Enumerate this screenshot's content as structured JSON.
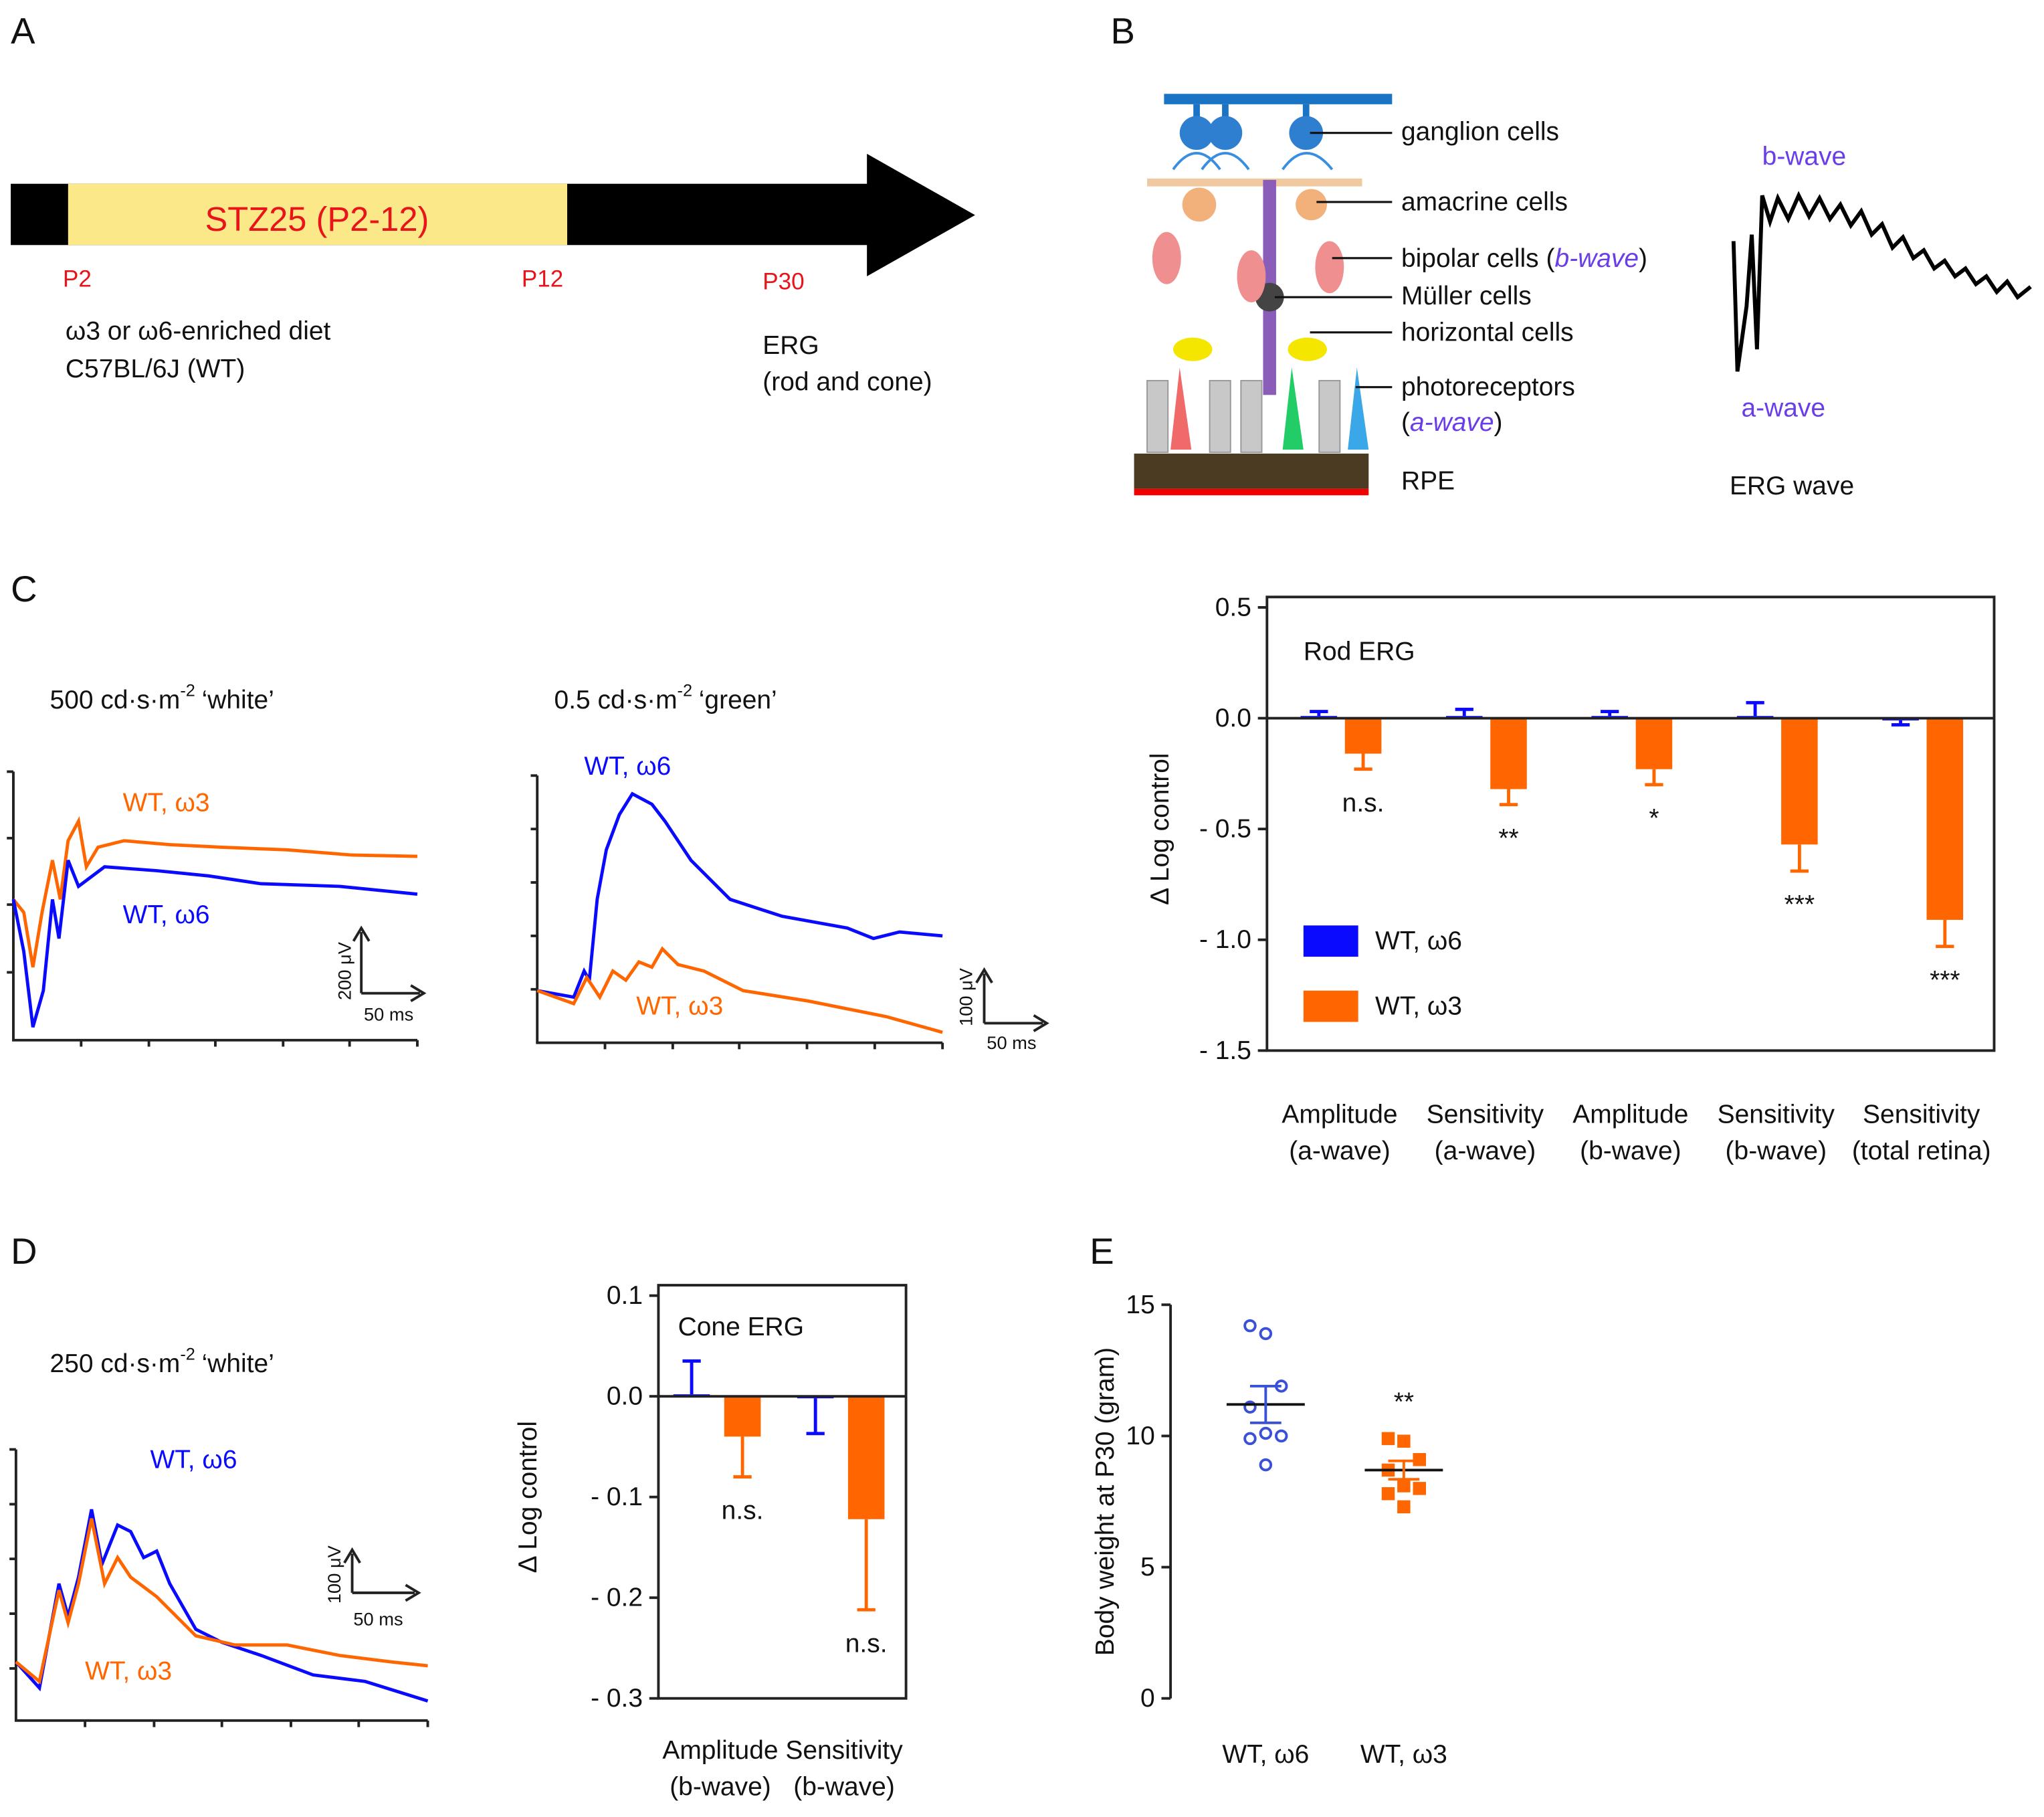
{
  "panel_letters": [
    "A",
    "B",
    "C",
    "D",
    "E"
  ],
  "timeline": {
    "bar_label": "STZ25 (P2-12)",
    "markers": [
      "P2",
      "P12",
      "P30"
    ],
    "diet": [
      "ω3 or ω6-enriched diet",
      "C57BL/6J (WT)"
    ],
    "erg": [
      "ERG",
      "(rod and cone)"
    ]
  },
  "retina": {
    "ganglion": "ganglion cells",
    "amacrine": "amacrine cells",
    "bipolar": [
      "bipolar cells (",
      "b-wave",
      ")"
    ],
    "muller": "Müller cells",
    "horizontal": "horizontal cells",
    "photoreceptors": [
      "photoreceptors",
      "(",
      "a-wave",
      ")"
    ],
    "rpe": "RPE",
    "wave": {
      "b": "b-wave",
      "a": "a-wave",
      "caption": "ERG wave"
    }
  },
  "traces": [
    {
      "stimulus": [
        "500 cd·s·m",
        "-2",
        "‘white’"
      ],
      "labels": [
        "WT, ω3",
        "WT, ω6"
      ],
      "scale": [
        "200 μV",
        "50 ms"
      ]
    },
    {
      "stimulus": [
        "0.5 cd·s·m",
        "-2",
        "‘green’"
      ],
      "labels": [
        "WT, ω6",
        "WT, ω3"
      ],
      "scale": [
        "100 μV",
        "50 ms"
      ]
    },
    {
      "stimulus": [
        "250 cd·s·m",
        "-2",
        "‘white’"
      ],
      "labels": [
        "WT, ω6",
        "WT, ω3"
      ],
      "scale": [
        "100 μV",
        "50 ms"
      ]
    }
  ],
  "chart_data": [
    {
      "type": "bar",
      "title": "Rod ERG",
      "ylabel": "Δ Log control",
      "categories": [
        [
          "Amplitude",
          "(a-wave)"
        ],
        [
          "Sensitivity",
          "(a-wave)"
        ],
        [
          "Amplitude",
          "(b-wave)"
        ],
        [
          "Sensitivity",
          "(b-wave)"
        ],
        [
          "Sensitivity",
          "(total retina)"
        ]
      ],
      "series": [
        {
          "name": "WT, ω6",
          "color": "#0a0aff",
          "values": [
            0.01,
            0.01,
            0.01,
            0.01,
            -0.01
          ],
          "errors": [
            0.02,
            0.03,
            0.02,
            0.06,
            0.02
          ]
        },
        {
          "name": "WT, ω3",
          "color": "#ff6600",
          "values": [
            -0.16,
            -0.32,
            -0.23,
            -0.57,
            -0.91
          ],
          "errors": [
            0.07,
            0.07,
            0.07,
            0.12,
            0.12
          ]
        }
      ],
      "annotations": [
        "n.s.",
        "**",
        "*",
        "***",
        "***"
      ],
      "ylim": [
        -1.5,
        0.5
      ],
      "yticks": [
        0.5,
        {
          "value": 0,
          "label": "0.0"
        },
        {
          "value": -0.5,
          "label": "- 0.5"
        },
        {
          "value": -1,
          "label": "- 1.0"
        },
        {
          "value": -1.5,
          "label": "- 1.5"
        }
      ],
      "legend": "lower left"
    },
    {
      "type": "bar",
      "title": "Cone ERG",
      "ylabel": "Δ Log control",
      "categories": [
        [
          "Amplitude",
          "(b-wave)"
        ],
        [
          "Sensitivity",
          "(b-wave)"
        ]
      ],
      "series": [
        {
          "name": "WT, ω6",
          "color": "#0a0aff",
          "values": [
            0.002,
            -0.002
          ],
          "errors": [
            0.033,
            0.035
          ]
        },
        {
          "name": "WT, ω3",
          "color": "#ff6600",
          "values": [
            -0.04,
            -0.122
          ],
          "errors": [
            0.04,
            0.09
          ]
        }
      ],
      "annotations": [
        "n.s.",
        "n.s."
      ],
      "ylim": [
        -0.3,
        0.1
      ],
      "yticks": [
        0.1,
        {
          "value": 0,
          "label": "0.0"
        },
        {
          "value": -0.1,
          "label": "- 0.1"
        },
        {
          "value": -0.2,
          "label": "- 0.2"
        },
        {
          "value": -0.3,
          "label": "- 0.3"
        }
      ]
    },
    {
      "type": "strip",
      "ylabel": "Body weight at P30 (gram)",
      "categories": [
        "WT, ω6",
        "WT, ω3"
      ],
      "series": [
        {
          "name": "WT, ω6",
          "color": "#3a50d8",
          "values": [
            14.2,
            13.9,
            11.9,
            11.1,
            10.1,
            10.0,
            9.9,
            8.9
          ],
          "mean": 11.2,
          "sem": 0.7
        },
        {
          "name": "WT, ω3",
          "color": "#ff6600",
          "values": [
            9.9,
            9.8,
            9.1,
            8.7,
            8.1,
            8.0,
            7.8,
            7.3
          ],
          "mean": 8.7,
          "sem": 0.35,
          "annotation": "**"
        }
      ],
      "ylim": [
        0,
        15
      ],
      "yticks": [
        0,
        5,
        10,
        15
      ]
    }
  ]
}
